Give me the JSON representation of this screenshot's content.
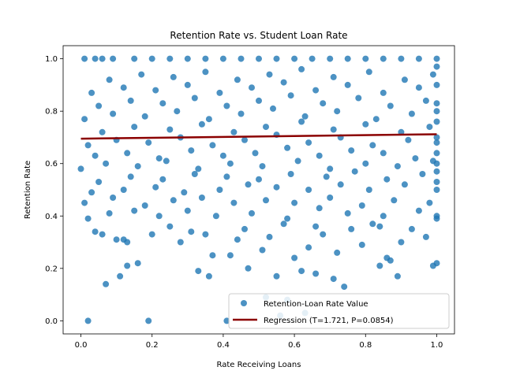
{
  "chart_data": {
    "type": "scatter",
    "title": "Retention Rate vs. Student Loan Rate",
    "xlabel": "Rate Receiving Loans",
    "ylabel": "Retention Rate",
    "xlim": [
      -0.05,
      1.05
    ],
    "ylim": [
      -0.05,
      1.05
    ],
    "xticks": [
      0.0,
      0.2,
      0.4,
      0.6,
      0.8,
      1.0
    ],
    "yticks": [
      0.0,
      0.2,
      0.4,
      0.6,
      0.8,
      1.0
    ],
    "xtick_labels": [
      "0.0",
      "0.2",
      "0.4",
      "0.6",
      "0.8",
      "1.0"
    ],
    "ytick_labels": [
      "0.0",
      "0.2",
      "0.4",
      "0.6",
      "0.8",
      "1.0"
    ],
    "grid": false,
    "legend_position": "lower right",
    "series": [
      {
        "name": "Retention-Loan Rate Value",
        "kind": "scatter",
        "color": "#1f77b4",
        "points": [
          [
            0.02,
            0.0
          ],
          [
            0.19,
            0.0
          ],
          [
            0.41,
            0.0
          ],
          [
            0.56,
            0.02
          ],
          [
            0.63,
            0.03
          ],
          [
            0.58,
            0.08
          ],
          [
            0.52,
            0.09
          ],
          [
            0.07,
            0.14
          ],
          [
            0.11,
            0.17
          ],
          [
            0.36,
            0.17
          ],
          [
            0.55,
            0.17
          ],
          [
            0.66,
            0.18
          ],
          [
            0.13,
            0.21
          ],
          [
            0.84,
            0.21
          ],
          [
            0.33,
            0.19
          ],
          [
            0.47,
            0.2
          ],
          [
            0.62,
            0.19
          ],
          [
            0.71,
            0.16
          ],
          [
            0.74,
            0.13
          ],
          [
            0.16,
            0.22
          ],
          [
            0.99,
            0.21
          ],
          [
            1.0,
            0.22
          ],
          [
            0.87,
            0.23
          ],
          [
            0.89,
            0.17
          ],
          [
            0.86,
            0.24
          ],
          [
            0.6,
            0.24
          ],
          [
            0.42,
            0.25
          ],
          [
            0.37,
            0.25
          ],
          [
            0.51,
            0.27
          ],
          [
            0.64,
            0.28
          ],
          [
            0.72,
            0.26
          ],
          [
            0.79,
            0.29
          ],
          [
            0.9,
            0.3
          ],
          [
            0.97,
            0.32
          ],
          [
            0.1,
            0.31
          ],
          [
            0.12,
            0.31
          ],
          [
            0.13,
            0.3
          ],
          [
            0.2,
            0.33
          ],
          [
            0.28,
            0.3
          ],
          [
            0.35,
            0.33
          ],
          [
            0.44,
            0.31
          ],
          [
            0.53,
            0.32
          ],
          [
            0.68,
            0.33
          ],
          [
            0.76,
            0.35
          ],
          [
            0.84,
            0.36
          ],
          [
            0.93,
            0.35
          ],
          [
            0.04,
            0.34
          ],
          [
            0.06,
            0.33
          ],
          [
            0.25,
            0.36
          ],
          [
            0.31,
            0.34
          ],
          [
            0.46,
            0.35
          ],
          [
            0.57,
            0.37
          ],
          [
            0.66,
            0.36
          ],
          [
            0.82,
            0.37
          ],
          [
            1.0,
            0.39
          ],
          [
            1.0,
            0.4
          ],
          [
            0.02,
            0.39
          ],
          [
            0.08,
            0.41
          ],
          [
            0.15,
            0.42
          ],
          [
            0.22,
            0.4
          ],
          [
            0.3,
            0.42
          ],
          [
            0.38,
            0.4
          ],
          [
            0.48,
            0.41
          ],
          [
            0.58,
            0.39
          ],
          [
            0.67,
            0.43
          ],
          [
            0.75,
            0.41
          ],
          [
            0.85,
            0.4
          ],
          [
            0.95,
            0.42
          ],
          [
            0.01,
            0.45
          ],
          [
            0.09,
            0.47
          ],
          [
            0.18,
            0.44
          ],
          [
            0.26,
            0.46
          ],
          [
            0.34,
            0.47
          ],
          [
            0.43,
            0.45
          ],
          [
            0.52,
            0.46
          ],
          [
            0.6,
            0.45
          ],
          [
            0.7,
            0.47
          ],
          [
            0.79,
            0.44
          ],
          [
            0.88,
            0.46
          ],
          [
            0.98,
            0.45
          ],
          [
            0.03,
            0.49
          ],
          [
            0.12,
            0.5
          ],
          [
            0.21,
            0.51
          ],
          [
            0.29,
            0.49
          ],
          [
            0.39,
            0.5
          ],
          [
            0.47,
            0.52
          ],
          [
            0.55,
            0.51
          ],
          [
            0.64,
            0.5
          ],
          [
            0.73,
            0.52
          ],
          [
            0.81,
            0.5
          ],
          [
            0.91,
            0.52
          ],
          [
            1.0,
            0.5
          ],
          [
            0.05,
            0.53
          ],
          [
            0.14,
            0.55
          ],
          [
            0.23,
            0.54
          ],
          [
            0.32,
            0.56
          ],
          [
            0.41,
            0.55
          ],
          [
            0.5,
            0.54
          ],
          [
            0.59,
            0.56
          ],
          [
            0.69,
            0.55
          ],
          [
            0.77,
            0.57
          ],
          [
            0.86,
            0.54
          ],
          [
            0.96,
            0.56
          ],
          [
            0.0,
            0.58
          ],
          [
            0.07,
            0.6
          ],
          [
            0.16,
            0.59
          ],
          [
            0.24,
            0.61
          ],
          [
            0.33,
            0.58
          ],
          [
            0.42,
            0.6
          ],
          [
            0.51,
            0.59
          ],
          [
            0.61,
            0.61
          ],
          [
            0.7,
            0.58
          ],
          [
            0.8,
            0.6
          ],
          [
            0.89,
            0.59
          ],
          [
            0.99,
            0.61
          ],
          [
            0.04,
            0.63
          ],
          [
            0.13,
            0.64
          ],
          [
            0.22,
            0.62
          ],
          [
            0.31,
            0.65
          ],
          [
            0.4,
            0.63
          ],
          [
            0.49,
            0.64
          ],
          [
            0.58,
            0.66
          ],
          [
            0.67,
            0.63
          ],
          [
            0.76,
            0.65
          ],
          [
            0.85,
            0.64
          ],
          [
            0.94,
            0.62
          ],
          [
            0.02,
            0.67
          ],
          [
            0.1,
            0.69
          ],
          [
            0.19,
            0.68
          ],
          [
            0.28,
            0.7
          ],
          [
            0.37,
            0.67
          ],
          [
            0.46,
            0.69
          ],
          [
            0.55,
            0.71
          ],
          [
            0.64,
            0.68
          ],
          [
            0.73,
            0.7
          ],
          [
            0.82,
            0.67
          ],
          [
            0.92,
            0.69
          ],
          [
            1.0,
            0.7
          ],
          [
            0.06,
            0.72
          ],
          [
            0.15,
            0.74
          ],
          [
            0.25,
            0.73
          ],
          [
            0.34,
            0.75
          ],
          [
            0.43,
            0.72
          ],
          [
            0.52,
            0.74
          ],
          [
            0.62,
            0.76
          ],
          [
            0.71,
            0.73
          ],
          [
            0.8,
            0.75
          ],
          [
            0.9,
            0.72
          ],
          [
            0.98,
            0.74
          ],
          [
            0.01,
            0.77
          ],
          [
            0.09,
            0.79
          ],
          [
            0.18,
            0.78
          ],
          [
            0.27,
            0.8
          ],
          [
            0.36,
            0.77
          ],
          [
            0.45,
            0.79
          ],
          [
            0.54,
            0.81
          ],
          [
            0.63,
            0.78
          ],
          [
            0.72,
            0.8
          ],
          [
            0.83,
            0.77
          ],
          [
            0.93,
            0.79
          ],
          [
            0.05,
            0.82
          ],
          [
            0.14,
            0.84
          ],
          [
            0.23,
            0.83
          ],
          [
            0.32,
            0.85
          ],
          [
            0.41,
            0.82
          ],
          [
            0.5,
            0.84
          ],
          [
            0.59,
            0.86
          ],
          [
            0.68,
            0.83
          ],
          [
            0.78,
            0.85
          ],
          [
            0.87,
            0.82
          ],
          [
            0.97,
            0.84
          ],
          [
            0.03,
            0.87
          ],
          [
            0.12,
            0.89
          ],
          [
            0.21,
            0.88
          ],
          [
            0.3,
            0.9
          ],
          [
            0.39,
            0.87
          ],
          [
            0.48,
            0.89
          ],
          [
            0.57,
            0.91
          ],
          [
            0.66,
            0.88
          ],
          [
            0.75,
            0.9
          ],
          [
            0.85,
            0.87
          ],
          [
            0.95,
            0.89
          ],
          [
            0.08,
            0.92
          ],
          [
            0.17,
            0.94
          ],
          [
            0.26,
            0.93
          ],
          [
            0.35,
            0.95
          ],
          [
            0.44,
            0.92
          ],
          [
            0.53,
            0.94
          ],
          [
            0.62,
            0.96
          ],
          [
            0.71,
            0.93
          ],
          [
            0.81,
            0.95
          ],
          [
            0.91,
            0.92
          ],
          [
            0.99,
            0.94
          ],
          [
            0.01,
            1.0
          ],
          [
            0.04,
            1.0
          ],
          [
            0.06,
            1.0
          ],
          [
            0.09,
            1.0
          ],
          [
            0.15,
            1.0
          ],
          [
            0.2,
            1.0
          ],
          [
            0.25,
            1.0
          ],
          [
            0.3,
            1.0
          ],
          [
            0.35,
            1.0
          ],
          [
            0.4,
            1.0
          ],
          [
            0.45,
            1.0
          ],
          [
            0.5,
            1.0
          ],
          [
            0.55,
            1.0
          ],
          [
            0.6,
            1.0
          ],
          [
            0.65,
            1.0
          ],
          [
            0.7,
            1.0
          ],
          [
            0.75,
            1.0
          ],
          [
            0.8,
            1.0
          ],
          [
            0.85,
            1.0
          ],
          [
            0.9,
            1.0
          ],
          [
            0.95,
            1.0
          ],
          [
            1.0,
            1.0
          ],
          [
            1.0,
            0.97
          ],
          [
            1.0,
            0.9
          ],
          [
            1.0,
            0.83
          ],
          [
            1.0,
            0.8
          ],
          [
            1.0,
            0.76
          ],
          [
            1.0,
            0.68
          ],
          [
            1.0,
            0.64
          ],
          [
            1.0,
            0.6
          ],
          [
            1.0,
            0.57
          ],
          [
            1.0,
            0.53
          ]
        ]
      },
      {
        "name": "Regression (T=1.721, P=0.0854)",
        "kind": "line",
        "color": "#8b0000",
        "x": [
          0.0,
          1.0
        ],
        "y": [
          0.695,
          0.712
        ]
      }
    ]
  }
}
